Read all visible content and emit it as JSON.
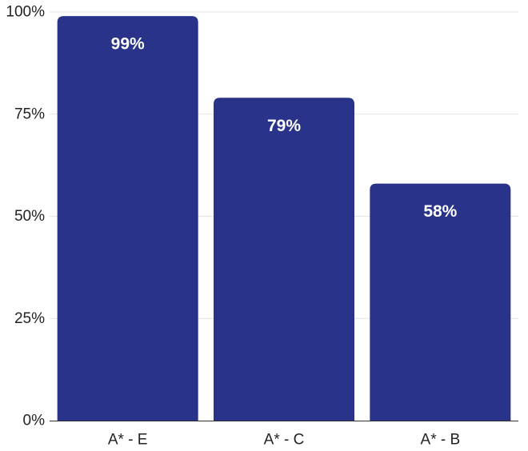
{
  "chart_data": {
    "type": "bar",
    "title": "",
    "xlabel": "",
    "ylabel": "",
    "categories": [
      "A* - E",
      "A* - C",
      "A* - B"
    ],
    "values": [
      99,
      79,
      58
    ],
    "data_labels": [
      "99%",
      "79%",
      "58%"
    ],
    "ylim": [
      0,
      100
    ],
    "yticks": [
      0,
      25,
      50,
      75,
      100
    ],
    "ytick_labels": [
      "0%",
      "25%",
      "50%",
      "75%",
      "100%"
    ],
    "grid": true,
    "bar_color": "#283389"
  }
}
